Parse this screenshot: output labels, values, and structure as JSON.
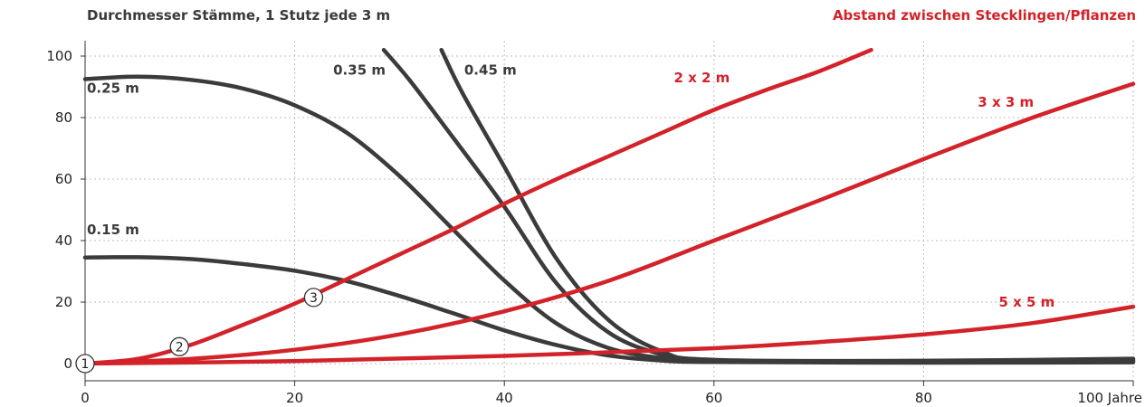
{
  "title_left": "Durchmesser Stämme, 1 Stutz jede 3 m",
  "title_right": "Abstand zwischen Stecklingen/Pflanzen",
  "colors": {
    "dark": "#3b3b3b",
    "red": "#d3232a",
    "grid": "#bdbdbd"
  },
  "chart_data": {
    "type": "line",
    "title": "Durchmesser Stämme, 1 Stutz jede 3 m",
    "subtitle": "Abstand zwischen Stecklingen/Pflanzen",
    "xlabel": "Jahre",
    "ylabel": "",
    "xlim": [
      0,
      100
    ],
    "ylim": [
      -5,
      105
    ],
    "x_ticks": [
      0,
      20,
      40,
      60,
      80,
      100
    ],
    "x_tick_labels": [
      "0",
      "20",
      "40",
      "60",
      "80",
      "100 Jahre"
    ],
    "y_ticks": [
      0,
      20,
      40,
      60,
      80,
      100
    ],
    "grid": true,
    "series": [
      {
        "name": "0.15 m",
        "color_role": "dark",
        "points": [
          [
            0,
            34.5
          ],
          [
            5,
            34.6
          ],
          [
            10,
            34
          ],
          [
            15,
            32.4
          ],
          [
            20,
            30.2
          ],
          [
            25,
            26.8
          ],
          [
            30,
            22
          ],
          [
            35,
            16.5
          ],
          [
            40,
            10.8
          ],
          [
            45,
            6
          ],
          [
            50,
            2.6
          ],
          [
            55,
            1
          ],
          [
            60,
            0.5
          ],
          [
            80,
            0.3
          ],
          [
            100,
            0.4
          ]
        ]
      },
      {
        "name": "0.25 m",
        "color_role": "dark",
        "points": [
          [
            0,
            92.5
          ],
          [
            5,
            93.3
          ],
          [
            10,
            92.3
          ],
          [
            15,
            89.5
          ],
          [
            20,
            84
          ],
          [
            25,
            75
          ],
          [
            30,
            61
          ],
          [
            35,
            44
          ],
          [
            40,
            27
          ],
          [
            45,
            13
          ],
          [
            50,
            5
          ],
          [
            55,
            1.8
          ],
          [
            60,
            0.7
          ],
          [
            80,
            0.5
          ],
          [
            100,
            0.7
          ]
        ]
      },
      {
        "name": "0.35 m",
        "color_role": "dark",
        "points": [
          [
            28.5,
            102
          ],
          [
            31,
            92
          ],
          [
            35,
            74
          ],
          [
            40,
            51
          ],
          [
            45,
            26
          ],
          [
            50,
            10
          ],
          [
            55,
            3
          ],
          [
            60,
            0.9
          ],
          [
            80,
            0.6
          ],
          [
            100,
            1.1
          ]
        ]
      },
      {
        "name": "0.45 m",
        "color_role": "dark",
        "points": [
          [
            34,
            102
          ],
          [
            36,
            88
          ],
          [
            40,
            64
          ],
          [
            45,
            34
          ],
          [
            50,
            14
          ],
          [
            55,
            4
          ],
          [
            60,
            1.2
          ],
          [
            80,
            0.9
          ],
          [
            100,
            1.6
          ]
        ]
      },
      {
        "name": "2 x 2 m",
        "color_role": "red",
        "points": [
          [
            0,
            0
          ],
          [
            5,
            1.5
          ],
          [
            10,
            6
          ],
          [
            15,
            12.5
          ],
          [
            20,
            19.5
          ],
          [
            25,
            27.5
          ],
          [
            30,
            35.5
          ],
          [
            35,
            43.5
          ],
          [
            40,
            52
          ],
          [
            45,
            60
          ],
          [
            50,
            67.5
          ],
          [
            55,
            75
          ],
          [
            60,
            82.5
          ],
          [
            65,
            89
          ],
          [
            70,
            95
          ],
          [
            75,
            102
          ]
        ]
      },
      {
        "name": "3 x 3 m",
        "color_role": "red",
        "points": [
          [
            0,
            0
          ],
          [
            10,
            1.5
          ],
          [
            20,
            4.5
          ],
          [
            30,
            9.5
          ],
          [
            40,
            17
          ],
          [
            50,
            27
          ],
          [
            60,
            40
          ],
          [
            70,
            53
          ],
          [
            80,
            66.5
          ],
          [
            90,
            79.5
          ],
          [
            100,
            91
          ]
        ]
      },
      {
        "name": "5 x 5 m",
        "color_role": "red",
        "points": [
          [
            0,
            0
          ],
          [
            20,
            0.8
          ],
          [
            40,
            2.5
          ],
          [
            60,
            5
          ],
          [
            70,
            7
          ],
          [
            80,
            9.5
          ],
          [
            90,
            13
          ],
          [
            100,
            18.5
          ]
        ]
      }
    ],
    "annotations": [
      {
        "text": "0.25 m",
        "x": 0,
        "y": 89.5,
        "color_role": "dark"
      },
      {
        "text": "0.15 m",
        "x": 0,
        "y": 43.5,
        "color_role": "dark"
      },
      {
        "text": "0.35 m",
        "x": 23.5,
        "y": 95.5,
        "color_role": "dark"
      },
      {
        "text": "0.45 m",
        "x": 36,
        "y": 95.5,
        "color_role": "dark"
      },
      {
        "text": "2 x 2 m",
        "x": 56,
        "y": 93,
        "color_role": "red"
      },
      {
        "text": "3 x 3 m",
        "x": 85,
        "y": 85,
        "color_role": "red"
      },
      {
        "text": "5 x 5 m",
        "x": 87,
        "y": 20,
        "color_role": "red"
      }
    ],
    "markers": [
      {
        "label": "1",
        "x": 0,
        "y": 0
      },
      {
        "label": "2",
        "x": 9,
        "y": 5.5
      },
      {
        "label": "3",
        "x": 21.8,
        "y": 21.5
      }
    ]
  }
}
